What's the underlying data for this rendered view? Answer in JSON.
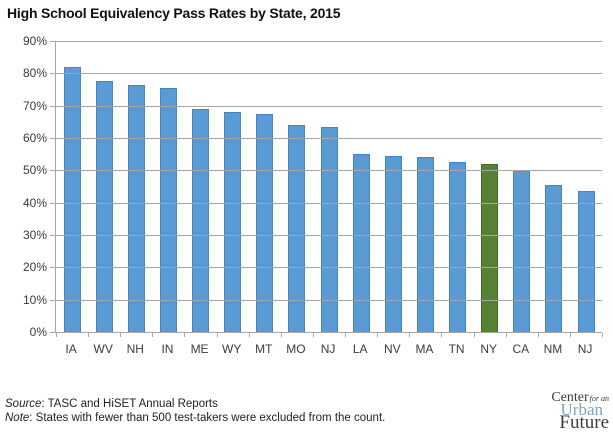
{
  "chart_data": {
    "type": "bar",
    "title": "High School Equivalency Pass Rates by State, 2015",
    "categories": [
      "IA",
      "WV",
      "NH",
      "IN",
      "ME",
      "WY",
      "MT",
      "MO",
      "NJ",
      "LA",
      "NV",
      "MA",
      "TN",
      "NY",
      "CA",
      "NM",
      "NJ"
    ],
    "values": [
      82,
      77.5,
      76.5,
      75.5,
      69,
      68,
      67.5,
      64,
      63.5,
      55,
      54.5,
      54,
      52.5,
      52,
      50,
      45.5,
      43.5
    ],
    "highlight_category": "NY",
    "highlight_index": 13,
    "xlabel": "",
    "ylabel": "",
    "ylim": [
      0,
      90
    ],
    "ytick_step": 10,
    "ytick_labels": [
      "90%",
      "80%",
      "70%",
      "60%",
      "50%",
      "40%",
      "30%",
      "20%",
      "10%",
      "0%"
    ],
    "grid": true,
    "legend": false,
    "colors": {
      "bar": "#5b9bd5",
      "bar_border": "#4384c4",
      "highlight": "#568233",
      "highlight_border": "#44682a",
      "grid": "#a6a6a6",
      "axis": "#a6a6a6",
      "logo_blue": "#7aa6c8"
    }
  },
  "footer": {
    "source_label": "Source",
    "source_rest": ": TASC and HiSET Annual Reports",
    "note_label": "Note",
    "note_rest": ": States with fewer than 500 test-takers were excluded from the count."
  },
  "logo": {
    "center": "Center",
    "for_an": "for an",
    "urban": "Urban",
    "future": "Future"
  }
}
